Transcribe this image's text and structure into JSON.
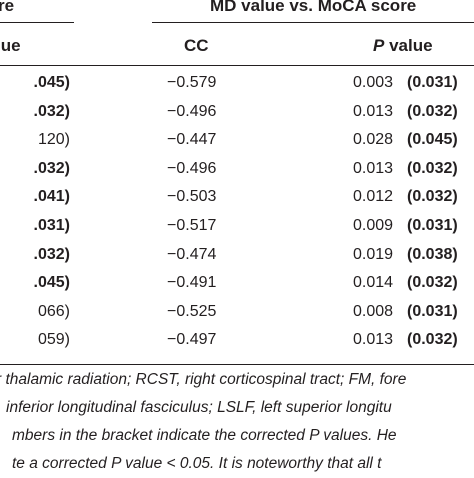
{
  "header": {
    "left_group": "re",
    "right_group": "MD value vs. MoCA score",
    "left_col": "lue",
    "cc_col": "CC",
    "p_col_italic": "P",
    "p_col_rest": " value"
  },
  "rows": [
    {
      "left": ".045)",
      "left_bold": true,
      "cc": "−0.579",
      "p": "0.003",
      "p_corr": "(0.031)"
    },
    {
      "left": ".032)",
      "left_bold": true,
      "cc": "−0.496",
      "p": "0.013",
      "p_corr": "(0.032)"
    },
    {
      "left": "120)",
      "left_bold": false,
      "cc": "−0.447",
      "p": "0.028",
      "p_corr": "(0.045)"
    },
    {
      "left": ".032)",
      "left_bold": true,
      "cc": "−0.496",
      "p": "0.013",
      "p_corr": "(0.032)"
    },
    {
      "left": ".041)",
      "left_bold": true,
      "cc": "−0.503",
      "p": "0.012",
      "p_corr": "(0.032)"
    },
    {
      "left": ".031)",
      "left_bold": true,
      "cc": "−0.517",
      "p": "0.009",
      "p_corr": "(0.031)"
    },
    {
      "left": ".032)",
      "left_bold": true,
      "cc": "−0.474",
      "p": "0.019",
      "p_corr": "(0.038)"
    },
    {
      "left": ".045)",
      "left_bold": true,
      "cc": "−0.491",
      "p": "0.014",
      "p_corr": "(0.032)"
    },
    {
      "left": "066)",
      "left_bold": false,
      "cc": "−0.525",
      "p": "0.008",
      "p_corr": "(0.031)"
    },
    {
      "left": "059)",
      "left_bold": false,
      "cc": "−0.497",
      "p": "0.013",
      "p_corr": "(0.032)"
    }
  ],
  "footnote": [
    "r thalamic radiation; RCST, right corticospinal tract; FM, fore",
    "inferior longitudinal fasciculus; LSLF, left superior longitu",
    "mbers in the bracket indicate the corrected P values. He",
    "te a corrected P value < 0.05. It is noteworthy that all t"
  ]
}
